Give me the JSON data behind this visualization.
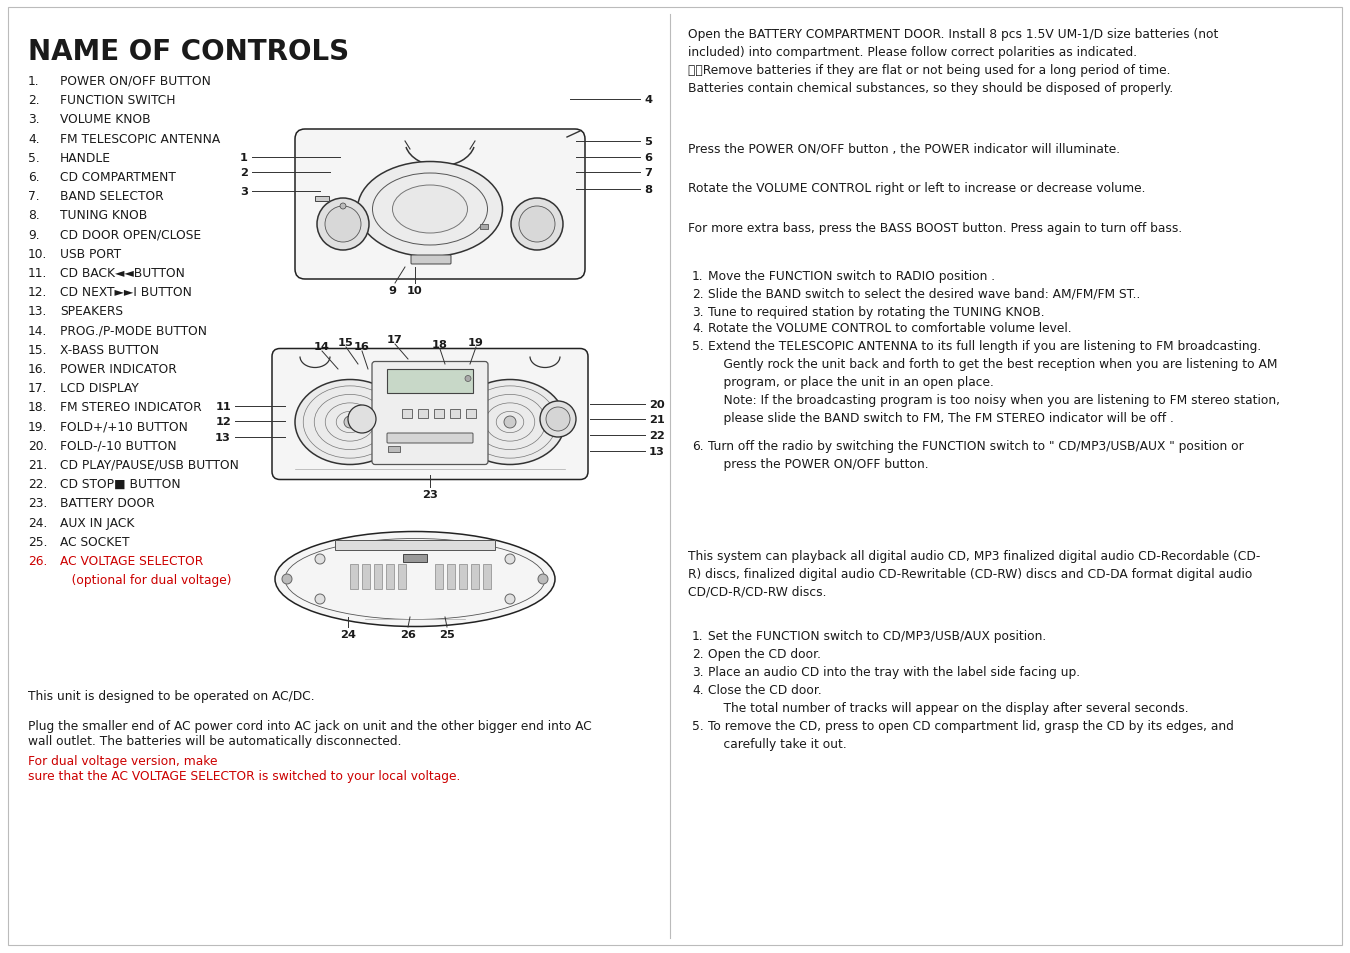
{
  "title": "NAME OF CONTROLS",
  "controls": [
    {
      "num": "1.",
      "text": "POWER ON/OFF BUTTON"
    },
    {
      "num": "2.",
      "text": "FUNCTION SWITCH"
    },
    {
      "num": "3.",
      "text": "VOLUME KNOB"
    },
    {
      "num": "4.",
      "text": "FM TELESCOPIC ANTENNA"
    },
    {
      "num": "5.",
      "text": "HANDLE"
    },
    {
      "num": "6.",
      "text": "CD COMPARTMENT"
    },
    {
      "num": "7.",
      "text": "BAND SELECTOR"
    },
    {
      "num": "8.",
      "text": "TUNING KNOB"
    },
    {
      "num": "9.",
      "text": "CD DOOR OPEN/CLOSE"
    },
    {
      "num": "10.",
      "text": "USB PORT"
    },
    {
      "num": "11.",
      "text": "CD BACK◄◄BUTTON"
    },
    {
      "num": "12.",
      "text": "CD NEXT►►I BUTTON"
    },
    {
      "num": "13.",
      "text": "SPEAKERS"
    },
    {
      "num": "14.",
      "text": "PROG./P-MODE BUTTON"
    },
    {
      "num": "15.",
      "text": "X-BASS BUTTON"
    },
    {
      "num": "16.",
      "text": "POWER INDICATOR"
    },
    {
      "num": "17.",
      "text": "LCD DISPLAY"
    },
    {
      "num": "18.",
      "text": "FM STEREO INDICATOR"
    },
    {
      "num": "19.",
      "text": "FOLD+/+10 BUTTON"
    },
    {
      "num": "20.",
      "text": "FOLD-/-10 BUTTON"
    },
    {
      "num": "21.",
      "text": "CD PLAY/PAUSE/USB BUTTON"
    },
    {
      "num": "22.",
      "text": "CD STOP■ BUTTON"
    },
    {
      "num": "23.",
      "text": "BATTERY DOOR"
    },
    {
      "num": "24.",
      "text": "AUX IN JACK"
    },
    {
      "num": "25.",
      "text": "AC SOCKET"
    },
    {
      "num": "26.",
      "text": "AC VOLTAGE SELECTOR",
      "red": true
    },
    {
      "num": "",
      "text": "   (optional for dual voltage)",
      "red": true
    }
  ],
  "bottom_para1": "This unit is designed to be operated on AC/DC.",
  "bottom_para2_black": "Plug the smaller end of AC power cord into AC jack on unit and the other bigger end into AC\nwall outlet. The batteries will be automatically disconnected.  ",
  "bottom_para2_red": "For dual voltage version, make\nsure that the AC VOLTAGE SELECTOR is switched to your local voltage.",
  "right_battery": "Open the BATTERY COMPARTMENT DOOR. Install 8 pcs 1.5V UM-1/D size batteries (not\nincluded) into compartment. Please follow correct polarities as indicated.\n\t\tRemove batteries if they are flat or not being used for a long period of time.\nBatteries contain chemical substances, so they should be disposed of properly.",
  "right_power": "Press the POWER ON/OFF button , the POWER indicator will illuminate.",
  "right_volume": "Rotate the VOLUME CONTROL right or left to increase or decrease volume.",
  "right_bass": "For more extra bass, press the BASS BOOST button. Press again to turn off bass.",
  "radio_items": [
    "Move the FUNCTION switch to RADIO position .",
    "Slide the BAND switch to select the desired wave band: AM/FM/FM ST..",
    "Tune to required station by rotating the TUNING KNOB.",
    "Rotate the VOLUME CONTROL to comfortable volume level.",
    "Extend the TELESCOPIC ANTENNA to its full length if you are listening to FM broadcasting.\n    Gently rock the unit back and forth to get the best reception when you are listening to AM\n    program, or place the unit in an open place.\n    Note: If the broadcasting program is too noisy when you are listening to FM stereo station,\n    please slide the BAND switch to FM, The FM STEREO indicator will be off .",
    "Turn off the radio by switching the FUNCTION switch to \" CD/MP3/USB/AUX \" position or\n    press the POWER ON/OFF button."
  ],
  "cd_intro": "This system can playback all digital audio CD, MP3 finalized digital audio CD-Recordable (CD-\nR) discs, finalized digital audio CD-Rewritable (CD-RW) discs and CD-DA format digital audio\nCD/CD-R/CD-RW discs.",
  "cd_items": [
    "Set the FUNCTION switch to CD/MP3/USB/AUX position.",
    "Open the CD door.",
    "Place an audio CD into the tray with the label side facing up.",
    "Close the CD door.\n    The total number of tracks will appear on the display after several seconds.",
    "To remove the CD, press to open CD compartment lid, grasp the CD by its edges, and\n    carefully take it out."
  ],
  "bg": "#ffffff",
  "black": "#1a1a1a",
  "red": "#cc0000",
  "gray": "#888888",
  "darkgray": "#444444"
}
